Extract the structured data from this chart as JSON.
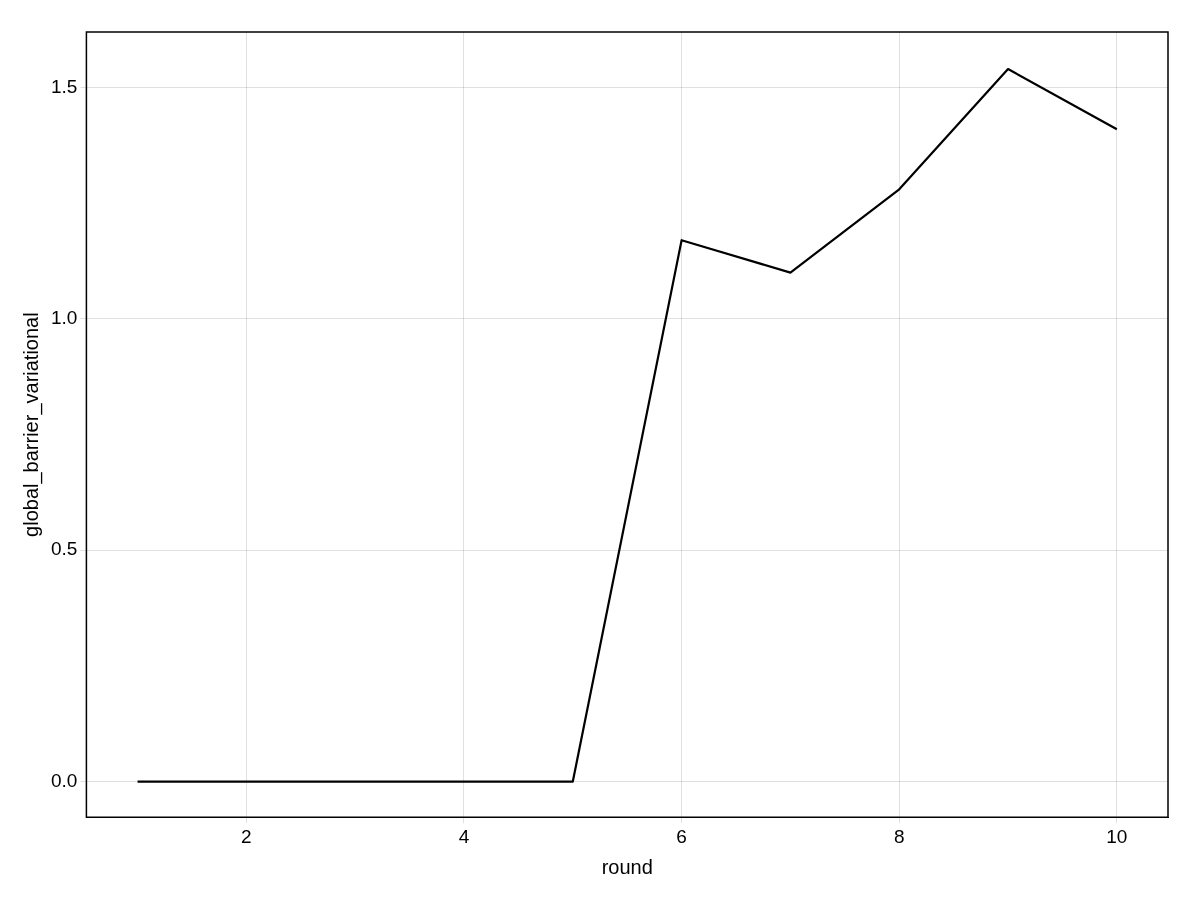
{
  "chart_data": {
    "type": "line",
    "xlabel": "round",
    "ylabel": "global_barrier_variational",
    "x": [
      1,
      2,
      3,
      4,
      5,
      6,
      7,
      8,
      9,
      10
    ],
    "series": [
      {
        "color": "#000000",
        "values": [
          0,
          0,
          0,
          0,
          0,
          1.17,
          1.1,
          1.28,
          1.54,
          1.41
        ]
      }
    ],
    "xlim": [
      0.53,
      10.47
    ],
    "xticks": [
      2,
      4,
      6,
      8,
      10
    ],
    "ylim": [
      -0.077,
      1.62
    ],
    "yticks": [
      {
        "value": 0,
        "label": "0.0"
      },
      0.5,
      {
        "value": 1,
        "label": "1.0"
      },
      1.5
    ],
    "grid": true,
    "marker": "none",
    "line_style": "solid"
  }
}
